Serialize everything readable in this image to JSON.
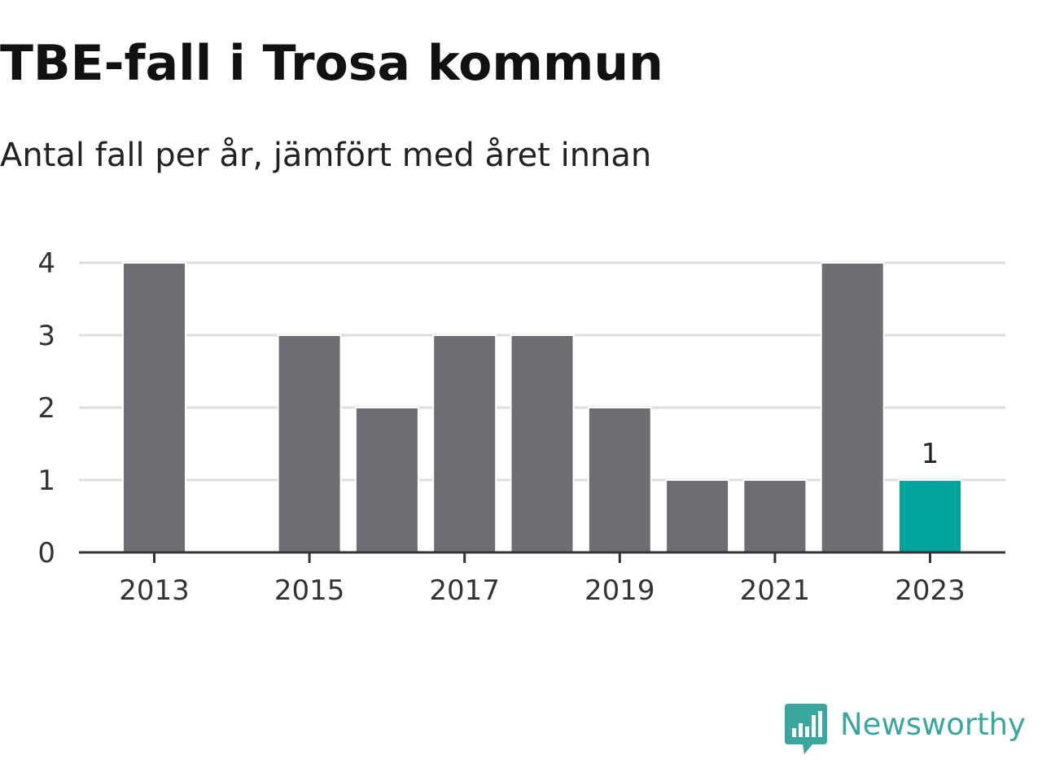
{
  "chart_data": {
    "type": "bar",
    "title": "TBE-fall i Trosa kommun",
    "subtitle": "Antal fall per år, jämfört med året innan",
    "xlabel": "",
    "ylabel": "",
    "categories": [
      "2013",
      "2014",
      "2015",
      "2016",
      "2017",
      "2018",
      "2019",
      "2020",
      "2021",
      "2022",
      "2023"
    ],
    "values": [
      4,
      0,
      3,
      2,
      3,
      3,
      2,
      1,
      1,
      4,
      1
    ],
    "x_tick_labels": [
      "2013",
      "2015",
      "2017",
      "2019",
      "2021",
      "2023"
    ],
    "y_ticks": [
      0,
      1,
      2,
      3,
      4
    ],
    "ylim": [
      0,
      4
    ],
    "grid": true,
    "highlight_index": 10,
    "highlight_label": "1",
    "colors": {
      "bar": "#6e6d73",
      "highlight": "#00a49a",
      "grid": "#dddddd",
      "axis": "#333333",
      "text": "#333333"
    }
  },
  "brand": {
    "name": "Newsworthy",
    "icon": "newsworthy-logo-icon",
    "color": "#3aa79e"
  }
}
